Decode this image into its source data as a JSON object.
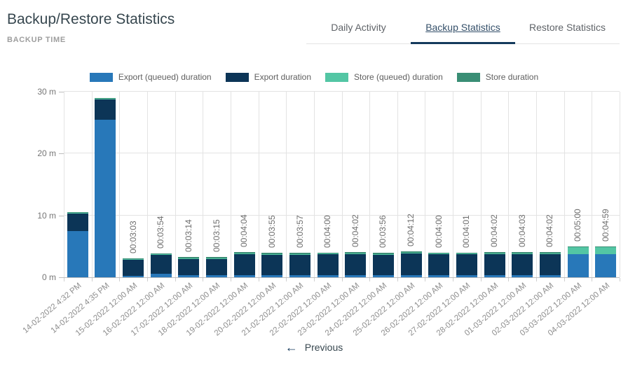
{
  "header": {
    "title": "Backup/Restore Statistics",
    "subtitle": "BACKUP TIME"
  },
  "tabs": [
    {
      "label": "Daily Activity",
      "active": false
    },
    {
      "label": "Backup Statistics",
      "active": true
    },
    {
      "label": "Restore Statistics",
      "active": false
    }
  ],
  "chart_data": {
    "type": "bar",
    "stacked": true,
    "unit": "minutes",
    "ylim": [
      0,
      30
    ],
    "ytick_values": [
      0,
      10,
      20,
      30
    ],
    "ytick_labels": [
      "0 m",
      "10 m",
      "20 m",
      "30 m"
    ],
    "grid": true,
    "legend_position": "top",
    "categories": [
      "14-02-2022 4:32 PM",
      "14-02-2022 4:35 PM",
      "15-02-2022 12:00 AM",
      "16-02-2022 12:00 AM",
      "17-02-2022 12:00 AM",
      "18-02-2022 12:00 AM",
      "19-02-2022 12:00 AM",
      "20-02-2022 12:00 AM",
      "21-02-2022 12:00 AM",
      "22-02-2022 12:00 AM",
      "23-02-2022 12:00 AM",
      "24-02-2022 12:00 AM",
      "25-02-2022 12:00 AM",
      "26-02-2022 12:00 AM",
      "27-02-2022 12:00 AM",
      "28-02-2022 12:00 AM",
      "01-03-2022 12:00 AM",
      "02-03-2022 12:00 AM",
      "03-03-2022 12:00 AM",
      "04-03-2022 12:00 AM"
    ],
    "bar_value_labels": [
      "",
      "",
      "00:03:03",
      "00:03:54",
      "00:03:14",
      "00:03:15",
      "00:04:04",
      "00:03:55",
      "00:03:57",
      "00:04:00",
      "00:04:02",
      "00:03:56",
      "00:04:12",
      "00:04:00",
      "00:04:01",
      "00:04:02",
      "00:04:03",
      "00:04:02",
      "00:05:00",
      "00:04:59"
    ],
    "series": [
      {
        "name": "Export (queued) duration",
        "color": "#2878b9",
        "values": [
          7.5,
          25.5,
          0.25,
          0.55,
          0.3,
          0.3,
          0.35,
          0.3,
          0.3,
          0.3,
          0.3,
          0.3,
          0.3,
          0.3,
          0.3,
          0.3,
          0.3,
          0.3,
          3.7,
          3.75
        ]
      },
      {
        "name": "Export duration",
        "color": "#0c3557",
        "values": [
          2.85,
          3.25,
          2.55,
          3.05,
          2.68,
          2.7,
          3.4,
          3.35,
          3.35,
          3.4,
          3.4,
          3.35,
          3.6,
          3.4,
          3.4,
          3.42,
          3.42,
          3.4,
          0,
          0
        ]
      },
      {
        "name": "Store (queued) duration",
        "color": "#53c6a4",
        "values": [
          0.08,
          0.08,
          0.1,
          0.12,
          0.1,
          0.1,
          0.12,
          0.1,
          0.12,
          0.12,
          0.15,
          0.1,
          0.1,
          0.12,
          0.14,
          0.13,
          0.15,
          0.15,
          1.2,
          1.13
        ]
      },
      {
        "name": "Store duration",
        "color": "#3a8e75",
        "values": [
          0.1,
          0.1,
          0.15,
          0.18,
          0.15,
          0.15,
          0.2,
          0.17,
          0.18,
          0.18,
          0.18,
          0.18,
          0.2,
          0.18,
          0.18,
          0.18,
          0.18,
          0.18,
          0.1,
          0.1
        ]
      }
    ]
  },
  "pagination": {
    "previous_label": "Previous",
    "previous_arrow": "←"
  }
}
